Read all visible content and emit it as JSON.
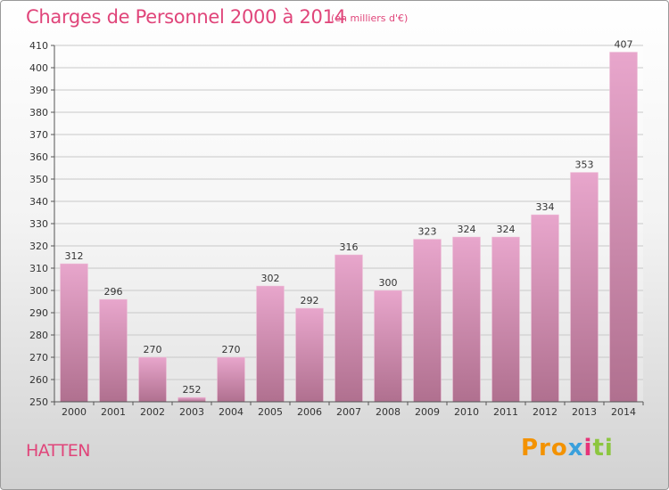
{
  "header": {
    "title": "Charges de Personnel 2000 à 2014",
    "subtitle": "(en milliers d'€)"
  },
  "footer": {
    "place": "HATTEN",
    "logo_parts": [
      "Pro",
      "x",
      "i",
      "ti"
    ]
  },
  "colors": {
    "title": "#e0457a",
    "bar_top": "#e8a6cc",
    "bar_bottom": "#b0708f",
    "grid": "#c8c8c8"
  },
  "chart_data": {
    "type": "bar",
    "title": "Charges de Personnel 2000 à 2014",
    "subtitle": "(en milliers d'€)",
    "categories": [
      "2000",
      "2001",
      "2002",
      "2003",
      "2004",
      "2005",
      "2006",
      "2007",
      "2008",
      "2009",
      "2010",
      "2011",
      "2012",
      "2013",
      "2014"
    ],
    "values": [
      312,
      296,
      270,
      252,
      270,
      302,
      292,
      316,
      300,
      323,
      324,
      324,
      334,
      353,
      407
    ],
    "ylim": [
      250,
      410
    ],
    "yticks": [
      250,
      260,
      270,
      280,
      290,
      300,
      310,
      320,
      330,
      340,
      350,
      360,
      370,
      380,
      390,
      400,
      410
    ],
    "grid": true
  }
}
